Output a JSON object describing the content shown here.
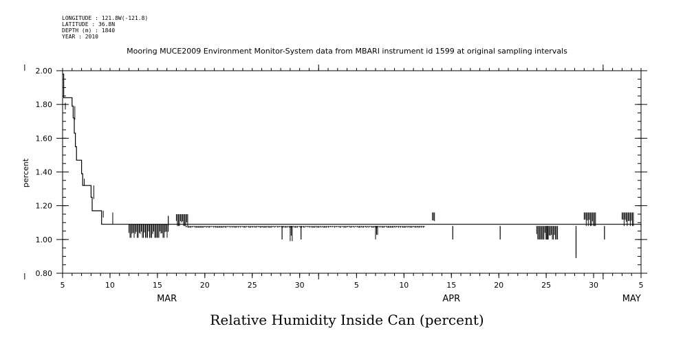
{
  "header": {
    "longitude": "LONGITUDE : 121.8W(-121.8)",
    "latitude": "LATITUDE : 36.8N",
    "depth": "DEPTH (m) : 1840",
    "year": "YEAR : 2010"
  },
  "chart_data": {
    "type": "line",
    "title": "Mooring MUCE2009 Environment Monitor-System data from MBARI instrument id 1599 at original sampling intervals",
    "xlabel": "Relative Humidity Inside Can (percent)",
    "ylabel": "percent",
    "ylim": [
      0.8,
      2.0
    ],
    "xlim": [
      "2010-03-05",
      "2010-05-05"
    ],
    "y_ticks": [
      "0.80",
      "1.00",
      "1.20",
      "1.40",
      "1.60",
      "1.80",
      "2.00"
    ],
    "x_ticks": [
      {
        "date": "2010-03-05",
        "label": "5"
      },
      {
        "date": "2010-03-10",
        "label": "10"
      },
      {
        "date": "2010-03-15",
        "label": "15"
      },
      {
        "date": "2010-03-20",
        "label": "20"
      },
      {
        "date": "2010-03-25",
        "label": "25"
      },
      {
        "date": "2010-03-30",
        "label": "30"
      },
      {
        "date": "2010-04-05",
        "label": "5"
      },
      {
        "date": "2010-04-10",
        "label": "10"
      },
      {
        "date": "2010-04-15",
        "label": "15"
      },
      {
        "date": "2010-04-20",
        "label": "20"
      },
      {
        "date": "2010-04-25",
        "label": "25"
      },
      {
        "date": "2010-04-30",
        "label": "30"
      },
      {
        "date": "2010-05-05",
        "label": "5"
      }
    ],
    "month_labels": [
      {
        "date": "2010-03-16",
        "label": "MAR"
      },
      {
        "date": "2010-04-15",
        "label": "APR"
      },
      {
        "date": "2010-05-04",
        "label": "MAY"
      }
    ],
    "series": [
      {
        "baseline": [
          {
            "x": "2010-03-05",
            "y": 1.98
          },
          {
            "x": "2010-03-05",
            "y": 1.84
          },
          {
            "x": "2010-03-06",
            "y": 1.79
          },
          {
            "x": "2010-03-06",
            "y": 1.72
          },
          {
            "x": "2010-03-06",
            "y": 1.63
          },
          {
            "x": "2010-03-06",
            "y": 1.55
          },
          {
            "x": "2010-03-06",
            "y": 1.47
          },
          {
            "x": "2010-03-07",
            "y": 1.39
          },
          {
            "x": "2010-03-07",
            "y": 1.32
          },
          {
            "x": "2010-03-08",
            "y": 1.25
          },
          {
            "x": "2010-03-08",
            "y": 1.17
          },
          {
            "x": "2010-03-09",
            "y": 1.17
          },
          {
            "x": "2010-03-09",
            "y": 1.09
          },
          {
            "x": "2010-03-11",
            "y": 1.09
          },
          {
            "x": "2010-05-05",
            "y": 1.08
          }
        ],
        "flicker_bands": [
          {
            "x0": "2010-03-12",
            "x1": "2010-03-16",
            "lo": 1.01,
            "hi": 1.09
          },
          {
            "x0": "2010-03-17",
            "x1": "2010-03-18",
            "lo": 1.08,
            "hi": 1.15
          },
          {
            "x0": "2010-03-18",
            "x1": "2010-03-29",
            "lo": 1.07,
            "hi": 1.08
          },
          {
            "x0": "2010-03-29",
            "x1": "2010-03-29",
            "lo": 0.99,
            "hi": 1.08
          },
          {
            "x0": "2010-03-29",
            "x1": "2010-04-12",
            "lo": 1.07,
            "hi": 1.08
          },
          {
            "x0": "2010-04-07",
            "x1": "2010-04-07",
            "lo": 1.0,
            "hi": 1.08
          },
          {
            "x0": "2010-04-13",
            "x1": "2010-04-13",
            "lo": 1.08,
            "hi": 1.16
          },
          {
            "x0": "2010-04-24",
            "x1": "2010-04-25",
            "lo": 1.0,
            "hi": 1.08
          },
          {
            "x0": "2010-04-25",
            "x1": "2010-04-26",
            "lo": 1.0,
            "hi": 1.08
          },
          {
            "x0": "2010-04-29",
            "x1": "2010-04-30",
            "lo": 1.08,
            "hi": 1.16
          },
          {
            "x0": "2010-05-03",
            "x1": "2010-05-04",
            "lo": 1.08,
            "hi": 1.16
          }
        ],
        "spikes": [
          {
            "x": "2010-03-16",
            "lo": 1.08,
            "hi": 1.14
          },
          {
            "x": "2010-03-28",
            "lo": 1.0,
            "hi": 1.08
          },
          {
            "x": "2010-03-30",
            "lo": 1.0,
            "hi": 1.08
          },
          {
            "x": "2010-04-15",
            "lo": 1.0,
            "hi": 1.08
          },
          {
            "x": "2010-04-20",
            "lo": 1.0,
            "hi": 1.08
          },
          {
            "x": "2010-04-28",
            "lo": 0.89,
            "hi": 1.08
          },
          {
            "x": "2010-05-01",
            "lo": 1.0,
            "hi": 1.08
          }
        ]
      }
    ]
  }
}
